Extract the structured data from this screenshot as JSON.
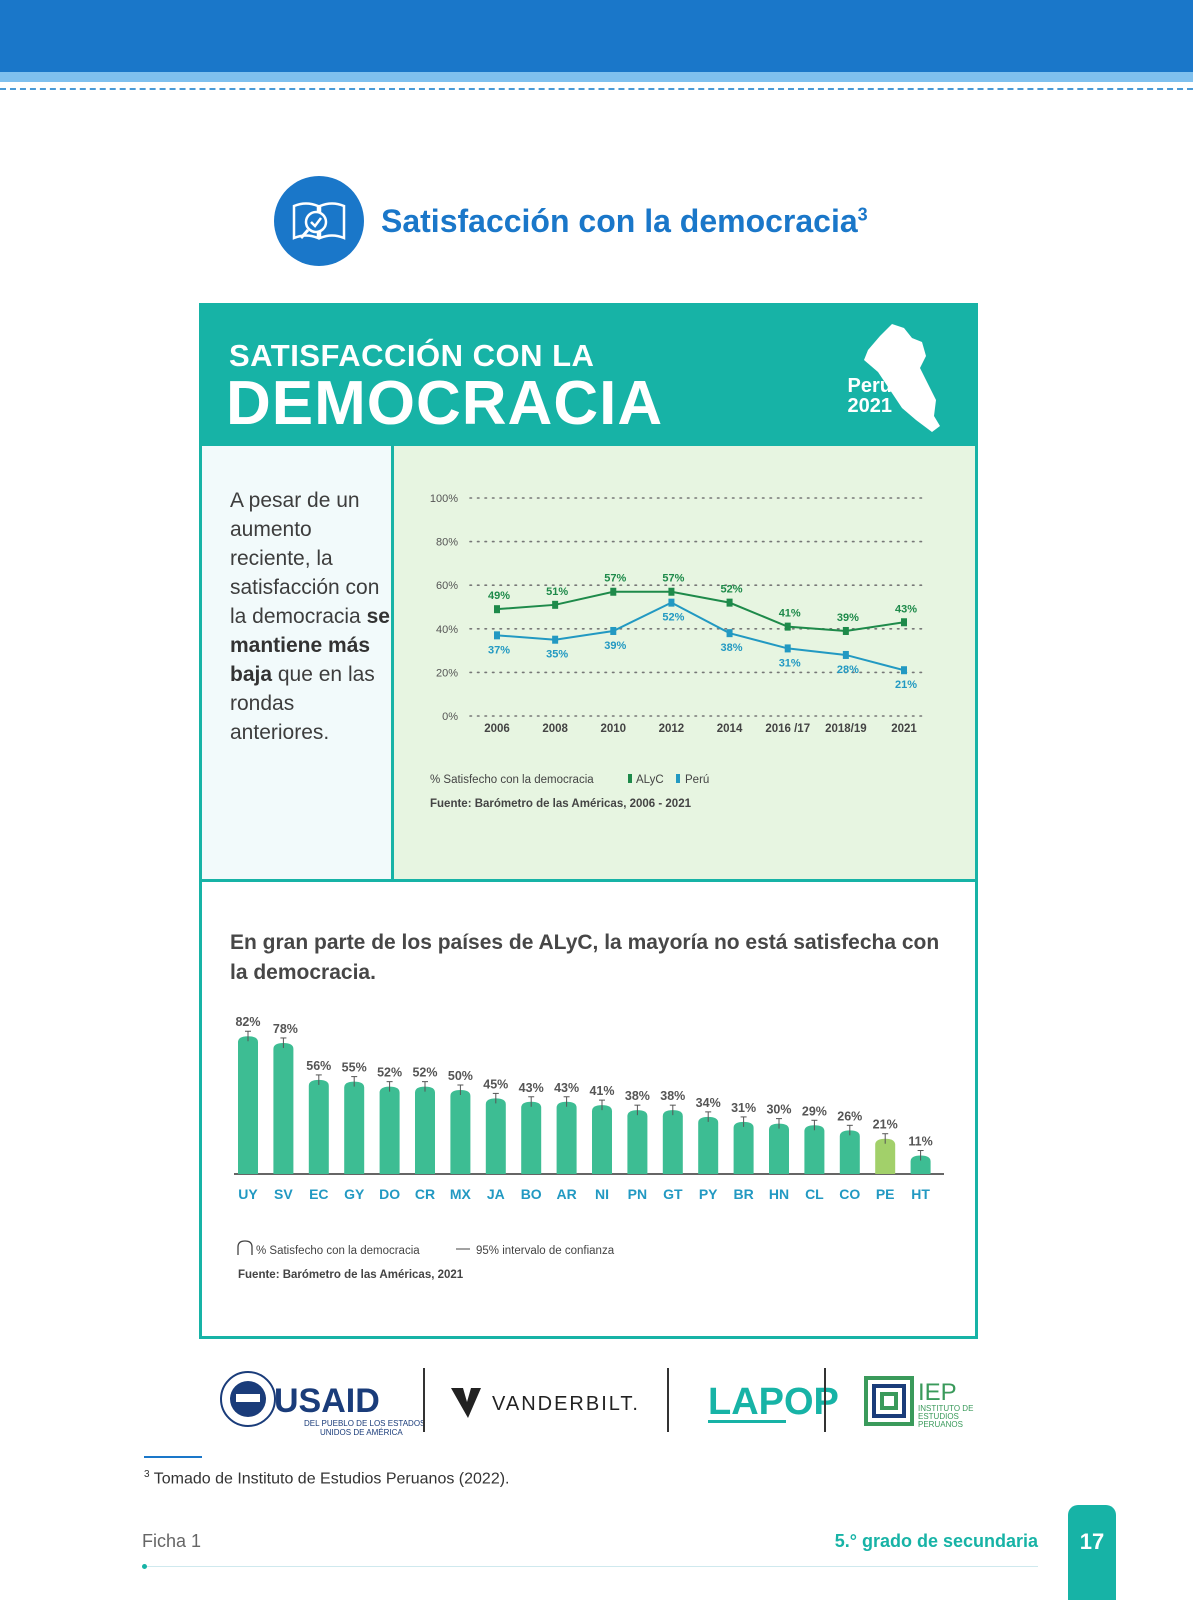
{
  "section": {
    "title": "Satisfacción con la democracia",
    "footnote_ref": "3"
  },
  "card": {
    "title_line1": "SATISFACCIÓN CON LA",
    "title_line2": "DEMOCRACIA",
    "badge_country": "Perú",
    "badge_year": "2021"
  },
  "left_text": {
    "part1": "A pesar de un aumento reciente, la satisfacción con la democracia",
    "bold": "se mantiene más baja",
    "part2": "que en las rondas anteriores."
  },
  "line_legend": {
    "metric": "% Satisfecho con la democracia",
    "s1": "ALyC",
    "s2": "Perú",
    "source": "Fuente: Barómetro de las Américas, 2006 - 2021"
  },
  "bar_heading": "En gran parte de los países de ALyC, la mayoría no está satisfecha con la democracia.",
  "bar_legend": {
    "metric": "% Satisfecho con la democracia",
    "ci": "95% intervalo de confianza",
    "source": "Fuente: Barómetro de las Américas, 2021"
  },
  "chart_data": [
    {
      "type": "line",
      "categories": [
        "2006",
        "2008",
        "2010",
        "2012",
        "2014",
        "2016 /17",
        "2018/19",
        "2021"
      ],
      "yticks": [
        "0%",
        "20%",
        "40%",
        "60%",
        "80%",
        "100%"
      ],
      "ylim": [
        0,
        100
      ],
      "grid": true,
      "series": [
        {
          "name": "ALyC",
          "color": "#1e8a4a",
          "values": [
            49,
            51,
            57,
            57,
            52,
            41,
            39,
            43
          ]
        },
        {
          "name": "Perú",
          "color": "#2299c2",
          "values": [
            37,
            35,
            39,
            52,
            38,
            31,
            28,
            21
          ]
        }
      ]
    },
    {
      "type": "bar",
      "categories": [
        "UY",
        "SV",
        "EC",
        "GY",
        "DO",
        "CR",
        "MX",
        "JA",
        "BO",
        "AR",
        "NI",
        "PN",
        "GT",
        "PY",
        "BR",
        "HN",
        "CL",
        "CO",
        "PE",
        "HT"
      ],
      "values": [
        82,
        78,
        56,
        55,
        52,
        52,
        50,
        45,
        43,
        43,
        41,
        38,
        38,
        34,
        31,
        30,
        29,
        26,
        21,
        11
      ],
      "ylim": [
        0,
        100
      ],
      "colors": {
        "default": "#3dbd93",
        "highlight": "#a2d06a",
        "label": "#2299c2"
      },
      "highlight": "PE"
    }
  ],
  "logos": {
    "usaid": "USAID",
    "usaid_sub1": "DEL PUEBLO DE LOS ESTADOS",
    "usaid_sub2": "UNIDOS DE AMÉRICA",
    "vanderbilt": "VANDERBILT.",
    "lapop": "LAPOP",
    "iep": "IEP",
    "iep_sub1": "INSTITUTO DE",
    "iep_sub2": "ESTUDIOS",
    "iep_sub3": "PERUANOS"
  },
  "footnote": {
    "num": "3",
    "text": "Tomado de Instituto de Estudios Peruanos (2022)."
  },
  "footer": {
    "left": "Ficha 1",
    "right": "5.° grado de secundaria",
    "page": "17"
  }
}
